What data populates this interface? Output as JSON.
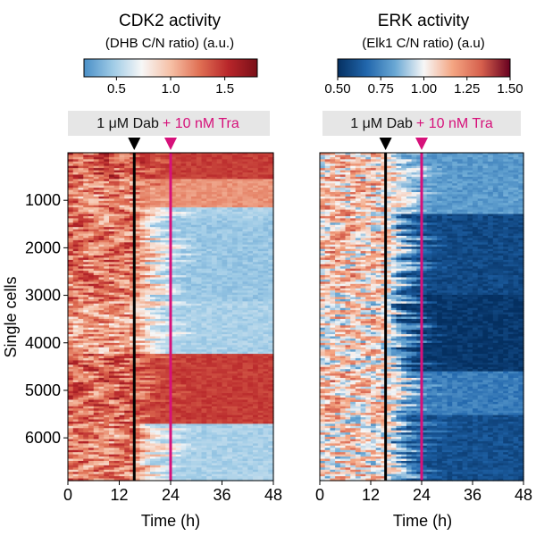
{
  "chart_data": [
    {
      "type": "heatmap",
      "title": "CDK2 activity",
      "subtitle": "(DHB C/N ratio) (a.u.)",
      "colorbar": {
        "range": [
          0.2,
          1.8
        ],
        "ticks": [
          0.5,
          1.0,
          1.5
        ],
        "tick_labels": [
          "0.5",
          "1.0",
          "1.5"
        ],
        "colormap": [
          "#4a8fc7",
          "#9fcbe6",
          "#f7f7f7",
          "#f6c0a6",
          "#e07054",
          "#b8262a",
          "#7a0f18"
        ]
      },
      "xlabel": "Time (h)",
      "xlim": [
        0,
        48
      ],
      "xticks": [
        0,
        12,
        24,
        36,
        48
      ],
      "xtick_labels": [
        "0",
        "12",
        "24",
        "36",
        "48"
      ],
      "ylabel": "Single cells",
      "ylim": [
        0,
        6900
      ],
      "yticks": [
        1000,
        2000,
        3000,
        4000,
        5000,
        6000
      ],
      "ytick_labels": [
        "1000",
        "2000",
        "3000",
        "4000",
        "5000",
        "6000"
      ],
      "treatments": [
        {
          "label": "1 μM Dab",
          "time_h": 15.5,
          "color": "#000000"
        },
        {
          "label": "+ 10 nM Tra",
          "time_h": 24,
          "color": "#d6117a"
        }
      ],
      "cell_groups": [
        {
          "cell_range": [
            0,
            550
          ],
          "pre": 1.35,
          "post": 1.45
        },
        {
          "cell_range": [
            550,
            1150
          ],
          "pre": 1.2,
          "post": 1.15
        },
        {
          "cell_range": [
            1150,
            1400
          ],
          "pre": 1.2,
          "post": 0.5
        },
        {
          "cell_range": [
            1400,
            3150
          ],
          "pre": 1.25,
          "post": 0.45
        },
        {
          "cell_range": [
            3150,
            4250
          ],
          "pre": 1.1,
          "post": 0.5
        },
        {
          "cell_range": [
            4250,
            5700
          ],
          "pre": 1.3,
          "post": 1.45
        },
        {
          "cell_range": [
            5700,
            6900
          ],
          "pre": 1.2,
          "post": 0.5
        }
      ]
    },
    {
      "type": "heatmap",
      "title": "ERK activity",
      "subtitle": "(Elk1 C/N ratio) (a.u)",
      "colorbar": {
        "range": [
          0.5,
          1.5
        ],
        "ticks": [
          0.5,
          0.75,
          1.0,
          1.25,
          1.5
        ],
        "tick_labels": [
          "0.50",
          "0.75",
          "1.00",
          "1.25",
          "1.50"
        ],
        "colormap": [
          "#053061",
          "#2166ac",
          "#6aa8d4",
          "#f7f7f7",
          "#f4a582",
          "#d6604d",
          "#67001f"
        ]
      },
      "xlabel": "Time (h)",
      "xlim": [
        0,
        48
      ],
      "xticks": [
        0,
        12,
        24,
        36,
        48
      ],
      "xtick_labels": [
        "0",
        "12",
        "24",
        "36",
        "48"
      ],
      "ylim": [
        0,
        6900
      ],
      "treatments": [
        {
          "label": "1 μM Dab",
          "time_h": 15.5,
          "color": "#000000"
        },
        {
          "label": "+ 10 nM Tra",
          "time_h": 24,
          "color": "#d6117a"
        }
      ],
      "cell_groups": [
        {
          "cell_range": [
            0,
            1300
          ],
          "pre": 1.1,
          "post": 0.8
        },
        {
          "cell_range": [
            1300,
            3000
          ],
          "pre": 1.1,
          "post": 0.58
        },
        {
          "cell_range": [
            3000,
            4600
          ],
          "pre": 1.05,
          "post": 0.52
        },
        {
          "cell_range": [
            4600,
            5500
          ],
          "pre": 1.1,
          "post": 0.72
        },
        {
          "cell_range": [
            5500,
            6900
          ],
          "pre": 1.05,
          "post": 0.6
        }
      ]
    }
  ]
}
